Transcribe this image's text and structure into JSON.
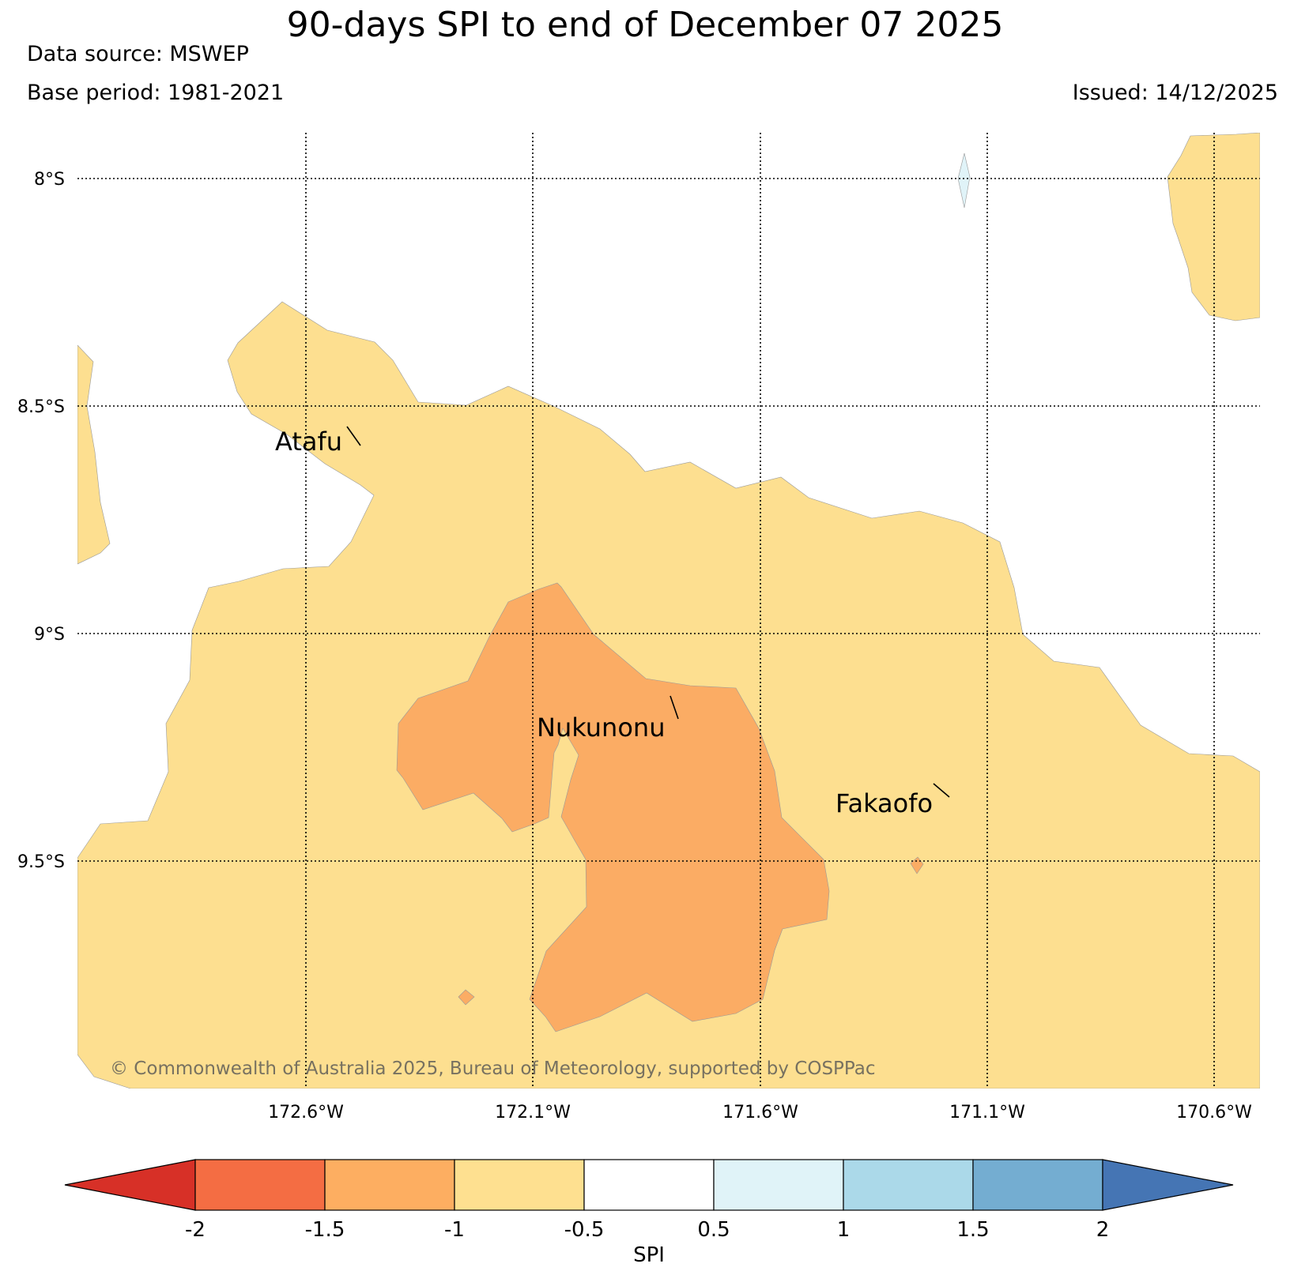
{
  "header": {
    "title": "90-days SPI to end of December 07 2025",
    "data_source": "Data source: MSWEP",
    "base_period": "Base period: 1981-2021",
    "issued": "Issued: 14/12/2025"
  },
  "map": {
    "lat_labels": [
      "8°S",
      "8.5°S",
      "9°S",
      "9.5°S"
    ],
    "lon_labels": [
      "172.6°W",
      "172.1°W",
      "171.6°W",
      "171.1°W",
      "170.6°W"
    ],
    "places": [
      {
        "name": "Atafu"
      },
      {
        "name": "Nukunonu"
      },
      {
        "name": "Fakaofo"
      }
    ],
    "copyright": "© Commonwealth of Australia 2025, Bureau of Meteorology, supported by COSPPac",
    "colors": {
      "spi_minus1_to_minus05": "#fddf90",
      "spi_minus15_to_minus1": "#fbac64",
      "spi_05_to_1": "#e0f3f8",
      "grid": "#000000"
    }
  },
  "colorbar": {
    "label": "SPI",
    "ticks": [
      "-2",
      "-1.5",
      "-1",
      "-0.5",
      "0.5",
      "1",
      "1.5",
      "2"
    ],
    "colors": [
      "#d73027",
      "#f46d43",
      "#fdae61",
      "#fee090",
      "#ffffff",
      "#e0f3f8",
      "#abd9e9",
      "#74add1",
      "#4575b4"
    ]
  }
}
